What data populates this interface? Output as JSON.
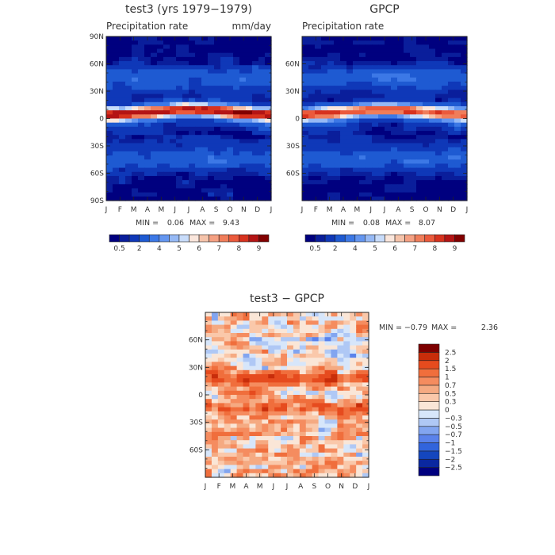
{
  "chart_data": [
    {
      "type": "heatmap",
      "title": "test3 (yrs 1979−1979)",
      "subtitle_left": "Precipitation rate",
      "subtitle_right": "mm/day",
      "x_ticks": [
        "J",
        "F",
        "M",
        "A",
        "M",
        "J",
        "J",
        "A",
        "S",
        "O",
        "N",
        "D",
        "J"
      ],
      "y_ticks": [
        "90N",
        "60N",
        "30N",
        "0",
        "30S",
        "60S",
        "90S"
      ],
      "stats": {
        "min_label": "MIN =",
        "min": "0.06",
        "max_label": "MAX =",
        "max": "9.43"
      },
      "colorbar_levels": [
        0.5,
        1,
        2,
        3,
        4,
        4.5,
        5,
        5.5,
        6,
        6.5,
        7,
        7.5,
        8,
        8.5,
        9
      ],
      "colorbar_labels": [
        "0.5",
        "2",
        "4",
        "5",
        "6",
        "7",
        "8",
        "9"
      ],
      "xlim": [
        1,
        13
      ],
      "ylim": [
        -90,
        90
      ],
      "colors": [
        "#00007f",
        "#0a1e9b",
        "#0f38b8",
        "#1e5ad2",
        "#3c78e6",
        "#6496f0",
        "#96b9f5",
        "#c8dcfa",
        "#fae6dc",
        "#f5c3aa",
        "#f5a082",
        "#f07d5a",
        "#eb5a3c",
        "#d7321e",
        "#b41414",
        "#820000"
      ]
    },
    {
      "type": "heatmap",
      "title": "GPCP",
      "subtitle_left": "Precipitation rate",
      "subtitle_right": "",
      "x_ticks": [
        "J",
        "F",
        "M",
        "A",
        "M",
        "J",
        "J",
        "A",
        "S",
        "O",
        "N",
        "D",
        "J"
      ],
      "y_ticks": [
        "60N",
        "30N",
        "0",
        "30S",
        "60S"
      ],
      "stats": {
        "min_label": "MIN =",
        "min": "0.08",
        "max_label": "MAX =",
        "max": "8.07"
      },
      "colorbar_levels": [
        0.5,
        1,
        2,
        3,
        4,
        4.5,
        5,
        5.5,
        6,
        6.5,
        7,
        7.5,
        8,
        8.5,
        9
      ],
      "colorbar_labels": [
        "0.5",
        "2",
        "4",
        "5",
        "6",
        "7",
        "8",
        "9"
      ],
      "xlim": [
        1,
        13
      ],
      "ylim": [
        -90,
        90
      ]
    },
    {
      "type": "heatmap",
      "title": "test3 − GPCP",
      "x_ticks": [
        "J",
        "F",
        "M",
        "A",
        "M",
        "J",
        "J",
        "A",
        "S",
        "O",
        "N",
        "D",
        "J"
      ],
      "y_ticks": [
        "60N",
        "30N",
        "0",
        "30S",
        "60S"
      ],
      "stats": {
        "min_label": "MIN =",
        "min": "−0.79",
        "max_label": "MAX =",
        "max": "2.36"
      },
      "colorbar_levels": [
        -2.5,
        -2,
        -1.5,
        -1,
        -0.7,
        -0.5,
        -0.3,
        0,
        0.3,
        0.5,
        0.7,
        1,
        1.5,
        2,
        2.5
      ],
      "colorbar_labels": [
        "2.5",
        "2",
        "1.5",
        "1",
        "0.7",
        "0.5",
        "0.3",
        "0",
        "−0.3",
        "−0.5",
        "−0.7",
        "−1",
        "−1.5",
        "−2",
        "−2.5"
      ],
      "xlim": [
        1,
        13
      ],
      "ylim": [
        -90,
        90
      ],
      "colors": [
        "#00007f",
        "#0a28a0",
        "#1446be",
        "#3264dc",
        "#5a82eb",
        "#82a5f0",
        "#afc8f5",
        "#d7e6fa",
        "#fae6d7",
        "#fac8aa",
        "#f5aa82",
        "#f58c5f",
        "#f06e3c",
        "#e64b1e",
        "#c82d0a",
        "#7d0000"
      ]
    }
  ]
}
